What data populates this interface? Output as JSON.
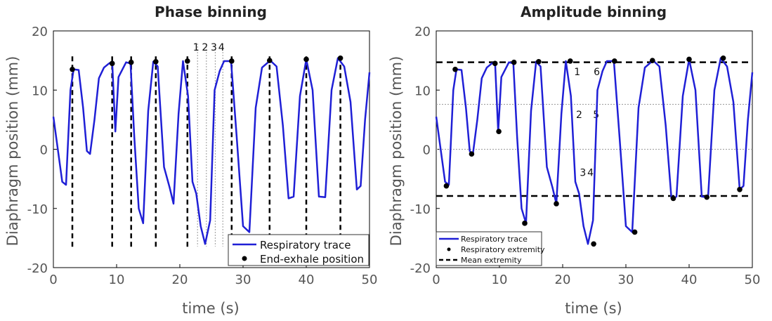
{
  "chart_data": [
    {
      "type": "line",
      "title": "Phase binning",
      "xlabel": "time (s)",
      "ylabel": "Diaphragm position (mm)",
      "xlim": [
        0,
        50
      ],
      "ylim": [
        -20,
        20
      ],
      "xticks": [
        "0",
        "10",
        "20",
        "30",
        "40",
        "50"
      ],
      "yticks": [
        "20",
        "10",
        "0",
        "-10",
        "-20"
      ],
      "series": [
        {
          "name": "Respiratory trace",
          "color": "#1f1fd6",
          "x": [
            0,
            0.7,
            1.4,
            2,
            2.7,
            3.2,
            4,
            4.7,
            5.3,
            5.8,
            6.5,
            7.2,
            8,
            8.8,
            9.3,
            9.8,
            10.3,
            11.5,
            12.2,
            12.8,
            13.5,
            14.2,
            15,
            15.8,
            16.5,
            17.5,
            18.4,
            19,
            19.8,
            20.5,
            21.3,
            22,
            22.6,
            23.3,
            24,
            24.8,
            25.5,
            26.3,
            27,
            28.1,
            29,
            30,
            31,
            32,
            33,
            34.3,
            35.3,
            36.3,
            37.2,
            38,
            39,
            40,
            41,
            42,
            43,
            44,
            45,
            46,
            47,
            48,
            48.6,
            49.3,
            50
          ],
          "y": [
            5.5,
            0,
            -5.5,
            -6,
            10,
            13.5,
            13.4,
            7,
            -0.3,
            -0.8,
            5,
            12,
            13.8,
            14.5,
            14.8,
            3,
            12.2,
            14.7,
            14.5,
            2,
            -10,
            -12.5,
            6.5,
            14.8,
            14,
            -3,
            -6.5,
            -9.2,
            6,
            14.9,
            9,
            -5.5,
            -7.5,
            -13,
            -16,
            -12,
            10,
            13.2,
            14.9,
            14.9,
            2,
            -13,
            -14,
            7,
            13.8,
            15,
            14,
            4,
            -8.3,
            -8,
            9,
            15.2,
            10,
            -8,
            -8.1,
            10,
            15.4,
            14,
            8,
            -6.8,
            -6.2,
            5,
            13
          ]
        },
        {
          "name": "End-exhale position",
          "color": "#000000",
          "x": [
            3,
            9.3,
            12.3,
            16.2,
            21.2,
            28.2,
            34.2,
            40,
            45.4
          ],
          "y": [
            13.5,
            14.5,
            14.7,
            14.8,
            14.9,
            14.9,
            15,
            15.2,
            15.4
          ]
        }
      ],
      "end_exhale_lines_x": [
        3,
        9.3,
        12.3,
        16.2,
        21.2,
        28.2,
        34.2,
        40,
        45.4
      ],
      "bin_lines_x": [
        22.8,
        24.2,
        25.6,
        26.8
      ],
      "bin_labels": [
        "1",
        "2",
        "3",
        "4"
      ],
      "legend": {
        "entries": [
          "Respiratory trace",
          "End-exhale position"
        ],
        "placement": "bottom-right"
      }
    },
    {
      "type": "line",
      "title": "Amplitude binning",
      "xlabel": "time (s)",
      "ylabel": "Diaphragm position (mm)",
      "xlim": [
        0,
        50
      ],
      "ylim": [
        -20,
        20
      ],
      "xticks": [
        "0",
        "10",
        "20",
        "30",
        "40",
        "50"
      ],
      "yticks": [
        "20",
        "10",
        "0",
        "-10",
        "-20"
      ],
      "series": [
        {
          "name": "Respiratory trace",
          "color": "#1f1fd6",
          "x": [
            0,
            0.7,
            1.4,
            2,
            2.7,
            3.2,
            4,
            4.7,
            5.3,
            5.8,
            6.5,
            7.2,
            8,
            8.8,
            9.3,
            9.8,
            10.3,
            11.5,
            12.2,
            12.8,
            13.5,
            14.2,
            15,
            15.8,
            16.5,
            17.5,
            18.4,
            19,
            19.8,
            20.5,
            21.3,
            22,
            22.6,
            23.3,
            24,
            24.8,
            25.5,
            26.3,
            27,
            28.1,
            29,
            30,
            31,
            32,
            33,
            34.3,
            35.3,
            36.3,
            37.2,
            38,
            39,
            40,
            41,
            42,
            43,
            44,
            45,
            46,
            47,
            48,
            48.6,
            49.3,
            50
          ],
          "y": [
            5.5,
            0,
            -5.5,
            -6,
            10,
            13.5,
            13.4,
            7,
            -0.3,
            -0.8,
            5,
            12,
            13.8,
            14.5,
            14.8,
            3,
            12.2,
            14.7,
            14.5,
            2,
            -10,
            -12.5,
            6.5,
            14.8,
            14,
            -3,
            -6.5,
            -9.2,
            6,
            14.9,
            9,
            -5.5,
            -7.5,
            -13,
            -16,
            -12,
            10,
            13.2,
            14.9,
            14.9,
            2,
            -13,
            -14,
            7,
            13.8,
            15,
            14,
            4,
            -8.3,
            -8,
            9,
            15.2,
            10,
            -8,
            -8.1,
            10,
            15.4,
            14,
            8,
            -6.8,
            -6.2,
            5,
            13
          ]
        },
        {
          "name": "Respiratory extremity",
          "color": "#000000",
          "x": [
            1.6,
            3,
            5.6,
            9.3,
            9.9,
            12.3,
            14,
            16.2,
            19,
            21.2,
            24.9,
            28.2,
            31.4,
            34.2,
            37.5,
            40,
            42.8,
            45.4,
            48
          ],
          "y": [
            -6.2,
            13.5,
            -0.8,
            14.5,
            3,
            14.7,
            -12.5,
            14.8,
            -9.2,
            14.9,
            -16,
            14.9,
            -14,
            15,
            -8.3,
            15.2,
            -8.1,
            15.4,
            -6.8
          ]
        }
      ],
      "mean_extremity_y": [
        14.7,
        -7.9
      ],
      "bin_threshold_y": [
        7.6,
        0
      ],
      "bin_labels": [
        {
          "text": "1",
          "x": 22.3,
          "y": 12.5
        },
        {
          "text": "6",
          "x": 25.4,
          "y": 12.5
        },
        {
          "text": "2",
          "x": 22.6,
          "y": 5.3
        },
        {
          "text": "5",
          "x": 25.3,
          "y": 5.3
        },
        {
          "text": "3",
          "x": 23.2,
          "y": -4.5
        },
        {
          "text": "4",
          "x": 24.4,
          "y": -4.5
        }
      ],
      "legend": {
        "entries": [
          "Respiratory trace",
          "Respiratory extremity",
          "Mean extremity"
        ],
        "placement": "bottom-left"
      }
    }
  ]
}
